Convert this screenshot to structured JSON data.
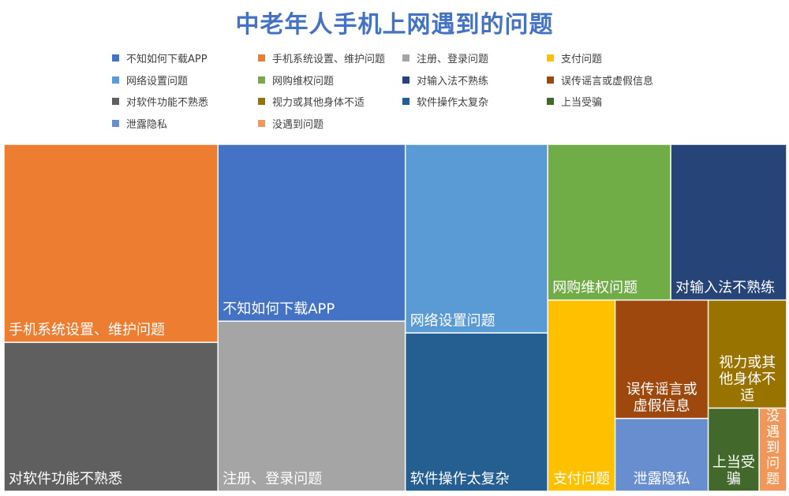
{
  "chart_data": {
    "type": "treemap",
    "title": "中老年人手机上网遇到的问题",
    "items": [
      {
        "name": "手机系统设置、维护问题",
        "value": 50.0,
        "color": "#ed7d31"
      },
      {
        "name": "对软件功能不熟悉",
        "value": 37.6,
        "color": "#5f5f5f"
      },
      {
        "name": "不知如何下载APP",
        "value": 39.1,
        "color": "#4472c4"
      },
      {
        "name": "注册、登录问题",
        "value": 37.6,
        "color": "#a5a5a5"
      },
      {
        "name": "网络设置问题",
        "value": 31.7,
        "color": "#5b9bd5"
      },
      {
        "name": "软件操作太复杂",
        "value": 26.6,
        "color": "#255e91"
      },
      {
        "name": "网购维权问题",
        "value": 22.6,
        "color": "#70ad47"
      },
      {
        "name": "对输入法不熟练",
        "value": 21.3,
        "color": "#264478"
      },
      {
        "name": "支付问题",
        "value": 15.2,
        "color": "#ffc000"
      },
      {
        "name": "误传谣言或虚假信息",
        "value": 13.0,
        "color": "#9e480e"
      },
      {
        "name": "视力或其他身体不适",
        "value": 10.0,
        "color": "#997300"
      },
      {
        "name": "泄露隐私",
        "value": 8.0,
        "color": "#698ed0"
      },
      {
        "name": "上当受骗",
        "value": 5.0,
        "color": "#43682b"
      },
      {
        "name": "没遇到问题",
        "value": 2.7,
        "color": "#f1975a"
      }
    ],
    "legend": {
      "placement": "top",
      "entries": [
        "不知如何下载APP",
        "手机系统设置、维护问题",
        "注册、登录问题",
        "支付问题",
        "网络设置问题",
        "网购维权问题",
        "对输入法不熟练",
        "误传谣言或虚假信息",
        "对软件功能不熟悉",
        "视力或其他身体不适",
        "软件操作太复杂",
        "上当受骗",
        "泄露隐私",
        "没遇到问题"
      ]
    }
  }
}
